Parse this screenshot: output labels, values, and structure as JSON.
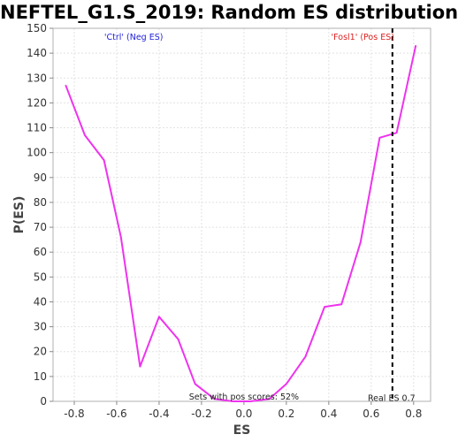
{
  "chart_data": {
    "type": "line",
    "title": "NEFTEL_G1.S_2019: Random ES distribution",
    "xlabel": "ES",
    "ylabel": "P(ES)",
    "xlim": [
      -0.9,
      0.88
    ],
    "ylim": [
      0,
      150
    ],
    "x_ticks": [
      -0.8,
      -0.6,
      -0.4,
      -0.2,
      0.0,
      0.2,
      0.4,
      0.6,
      0.8
    ],
    "x_tick_labels": [
      "-0.8",
      "-0.6",
      "-0.4",
      "-0.2",
      "0.0",
      "0.2",
      "0.4",
      "0.6",
      "0.8"
    ],
    "y_ticks": [
      0,
      10,
      20,
      30,
      40,
      50,
      60,
      70,
      80,
      90,
      100,
      110,
      120,
      130,
      140,
      150
    ],
    "grid": true,
    "series": [
      {
        "color": "#ee33ee",
        "x": [
          -0.84,
          -0.75,
          -0.66,
          -0.58,
          -0.49,
          -0.4,
          -0.31,
          -0.23,
          -0.14,
          -0.05,
          0.03,
          0.12,
          0.2,
          0.29,
          0.38,
          0.46,
          0.55,
          0.64,
          0.72,
          0.81
        ],
        "y": [
          127,
          107,
          97,
          66,
          14,
          34,
          25,
          7,
          1,
          0,
          0,
          1,
          7,
          18,
          38,
          39,
          64,
          106,
          108,
          143
        ]
      }
    ],
    "real_es": {
      "x": 0.7,
      "label": "Real ES 0.7"
    },
    "annotations": {
      "neg_label": "'Ctrl' (Neg ES)",
      "pos_label": "'Fosl1' (Pos ES)",
      "pos_scores": "Sets with pos scores: 52%"
    },
    "colors": {
      "neg": "#2222dd",
      "pos": "#dd2222",
      "line": "#ee33ee"
    }
  }
}
